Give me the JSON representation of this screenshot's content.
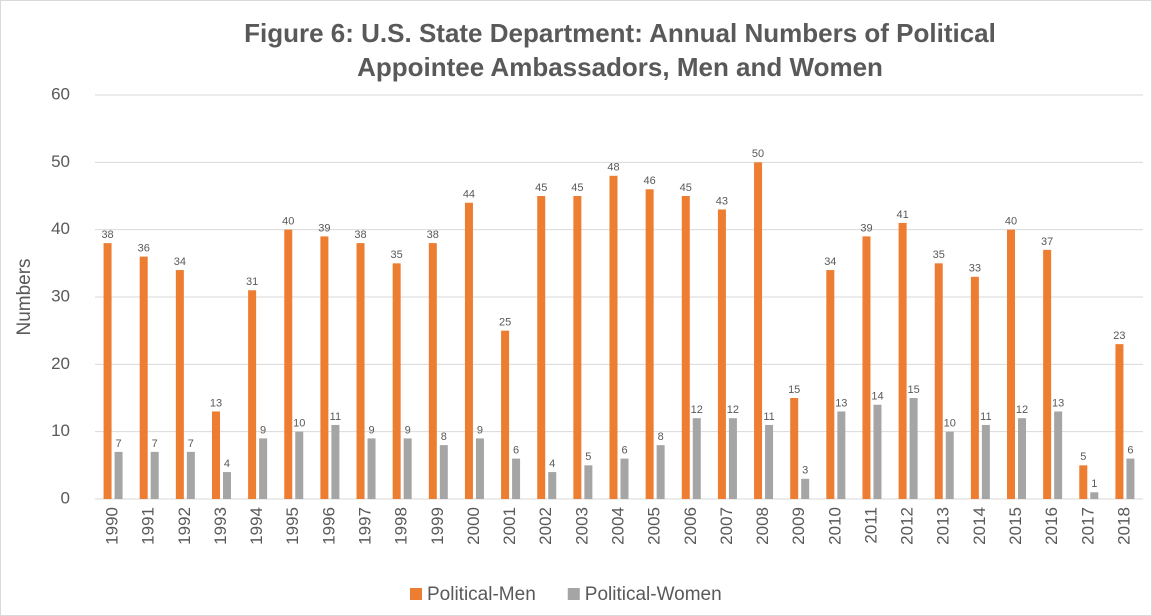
{
  "chart_data": {
    "type": "bar",
    "title": "Figure 6: U.S. State Department: Annual Numbers of Political Appointee Ambassadors, Men and Women",
    "ylabel": "Numbers",
    "categories": [
      "1990",
      "1991",
      "1992",
      "1993",
      "1994",
      "1995",
      "1996",
      "1997",
      "1998",
      "1999",
      "2000",
      "2001",
      "2002",
      "2003",
      "2004",
      "2005",
      "2006",
      "2007",
      "2008",
      "2009",
      "2010",
      "2011",
      "2012",
      "2013",
      "2014",
      "2015",
      "2016",
      "2017",
      "2018"
    ],
    "series": [
      {
        "name": "Political-Men",
        "color": "#ed7d31",
        "values": [
          38,
          36,
          34,
          13,
          31,
          40,
          39,
          38,
          35,
          38,
          44,
          25,
          45,
          45,
          48,
          46,
          45,
          43,
          50,
          15,
          34,
          39,
          41,
          35,
          33,
          40,
          37,
          5,
          23
        ]
      },
      {
        "name": "Political-Women",
        "color": "#a5a5a5",
        "values": [
          7,
          7,
          7,
          4,
          9,
          10,
          11,
          9,
          9,
          8,
          9,
          6,
          4,
          5,
          6,
          8,
          12,
          12,
          11,
          3,
          13,
          14,
          15,
          10,
          11,
          12,
          13,
          1,
          6
        ]
      }
    ],
    "ylim": [
      0,
      60
    ],
    "yticks": [
      0,
      10,
      20,
      30,
      40,
      50,
      60
    ],
    "grid": true,
    "legend": "bottom"
  }
}
